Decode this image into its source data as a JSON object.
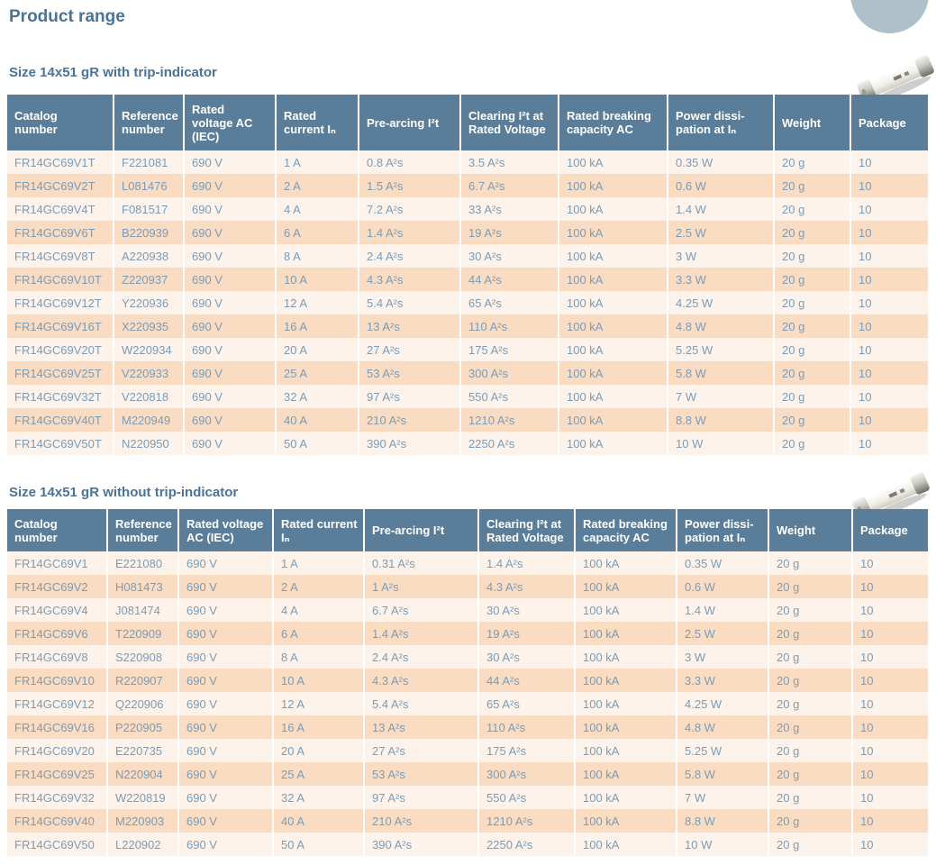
{
  "page": {
    "title": "Product range"
  },
  "colors": {
    "table_header_bg": "#5a7e9a",
    "row_light": "#fdf3eb",
    "row_peach": "#fadcc2",
    "cell_text": "#7a9cb8",
    "heading_text": "#4a7397",
    "circle_badge": "#aec0ca"
  },
  "tables": [
    {
      "heading": "Size 14x51 gR with trip-indicator",
      "columns": [
        "Catalog\nnumber",
        "Reference\nnumber",
        "Rated\nvoltage AC\n(IEC)",
        "Rated\ncurrent Iₙ",
        "Pre-arcing I²t",
        "Clearing I²t at\nRated Voltage",
        "Rated breaking\ncapacity AC",
        "Power dissi-\npation at Iₙ",
        "Weight",
        "Package"
      ],
      "rows": [
        [
          "FR14GC69V1T",
          "F221081",
          "690 V",
          "1 A",
          "0.8 A²s",
          "3.5 A²s",
          "100 kA",
          "0.35 W",
          "20 g",
          "10"
        ],
        [
          "FR14GC69V2T",
          "L081476",
          "690 V",
          "2 A",
          "1.5 A²s",
          "6.7 A²s",
          "100 kA",
          "0.6 W",
          "20 g",
          "10"
        ],
        [
          "FR14GC69V4T",
          "F081517",
          "690 V",
          "4 A",
          "7.2 A²s",
          "33 A²s",
          "100 kA",
          "1.4 W",
          "20 g",
          "10"
        ],
        [
          "FR14GC69V6T",
          "B220939",
          "690 V",
          "6 A",
          "1.4 A²s",
          "19 A²s",
          "100 kA",
          "2.5 W",
          "20 g",
          "10"
        ],
        [
          "FR14GC69V8T",
          "A220938",
          "690 V",
          "8 A",
          "2.4 A²s",
          "30 A²s",
          "100 kA",
          "3 W",
          "20 g",
          "10"
        ],
        [
          "FR14GC69V10T",
          "Z220937",
          "690 V",
          "10 A",
          "4.3 A²s",
          "44 A²s",
          "100 kA",
          "3.3 W",
          "20 g",
          "10"
        ],
        [
          "FR14GC69V12T",
          "Y220936",
          "690 V",
          "12 A",
          "5.4 A²s",
          "65 A²s",
          "100 kA",
          "4.25 W",
          "20 g",
          "10"
        ],
        [
          "FR14GC69V16T",
          "X220935",
          "690 V",
          "16 A",
          "13 A²s",
          "110 A²s",
          "100 kA",
          "4.8 W",
          "20 g",
          "10"
        ],
        [
          "FR14GC69V20T",
          "W220934",
          "690 V",
          "20 A",
          "27 A²s",
          "175 A²s",
          "100 kA",
          "5.25 W",
          "20 g",
          "10"
        ],
        [
          "FR14GC69V25T",
          "V220933",
          "690 V",
          "25 A",
          "53 A²s",
          "300 A²s",
          "100 kA",
          "5.8 W",
          "20 g",
          "10"
        ],
        [
          "FR14GC69V32T",
          "V220818",
          "690 V",
          "32 A",
          "97 A²s",
          "550 A²s",
          "100 kA",
          "7 W",
          "20 g",
          "10"
        ],
        [
          "FR14GC69V40T",
          "M220949",
          "690 V",
          "40 A",
          "210 A²s",
          "1210 A²s",
          "100 kA",
          "8.8 W",
          "20 g",
          "10"
        ],
        [
          "FR14GC69V50T",
          "N220950",
          "690 V",
          "50 A",
          "390 A²s",
          "2250 A²s",
          "100 kA",
          "10 W",
          "20 g",
          "10"
        ]
      ]
    },
    {
      "heading": "Size 14x51 gR without trip-indicator",
      "columns": [
        "Catalog\nnumber",
        "Reference\nnumber",
        "Rated voltage\nAC (IEC)",
        "Rated current\nIₙ",
        "Pre-arcing I²t",
        "Clearing I²t at\nRated Voltage",
        "Rated breaking\ncapacity AC",
        "Power dissi-\npation at Iₙ",
        "Weight",
        "Package"
      ],
      "rows": [
        [
          "FR14GC69V1",
          "E221080",
          "690 V",
          "1 A",
          "0.31 A²s",
          "1.4 A²s",
          "100 kA",
          "0.35 W",
          "20 g",
          "10"
        ],
        [
          "FR14GC69V2",
          "H081473",
          "690 V",
          "2 A",
          "1 A²s",
          "4.3 A²s",
          "100 kA",
          "0.6 W",
          "20 g",
          "10"
        ],
        [
          "FR14GC69V4",
          "J081474",
          "690 V",
          "4 A",
          "6.7 A²s",
          "30 A²s",
          "100 kA",
          "1.4 W",
          "20 g",
          "10"
        ],
        [
          "FR14GC69V6",
          "T220909",
          "690 V",
          "6 A",
          "1.4 A²s",
          "19 A²s",
          "100 kA",
          "2.5 W",
          "20 g",
          "10"
        ],
        [
          "FR14GC69V8",
          "S220908",
          "690 V",
          "8 A",
          "2.4 A²s",
          "30 A²s",
          "100 kA",
          "3 W",
          "20 g",
          "10"
        ],
        [
          "FR14GC69V10",
          "R220907",
          "690 V",
          "10 A",
          "4.3 A²s",
          "44 A²s",
          "100 kA",
          "3.3 W",
          "20 g",
          "10"
        ],
        [
          "FR14GC69V12",
          "Q220906",
          "690 V",
          "12 A",
          "5.4 A²s",
          "65 A²s",
          "100 kA",
          "4.25 W",
          "20 g",
          "10"
        ],
        [
          "FR14GC69V16",
          "P220905",
          "690 V",
          "16 A",
          "13 A²s",
          "110 A²s",
          "100 kA",
          "4.8 W",
          "20 g",
          "10"
        ],
        [
          "FR14GC69V20",
          "E220735",
          "690 V",
          "20 A",
          "27 A²s",
          "175 A²s",
          "100 kA",
          "5.25 W",
          "20 g",
          "10"
        ],
        [
          "FR14GC69V25",
          "N220904",
          "690 V",
          "25 A",
          "53 A²s",
          "300 A²s",
          "100 kA",
          "5.8 W",
          "20 g",
          "10"
        ],
        [
          "FR14GC69V32",
          "W220819",
          "690 V",
          "32 A",
          "97 A²s",
          "550 A²s",
          "100 kA",
          "7 W",
          "20 g",
          "10"
        ],
        [
          "FR14GC69V40",
          "M220903",
          "690 V",
          "40 A",
          "210 A²s",
          "1210 A²s",
          "100 kA",
          "8.8 W",
          "20 g",
          "10"
        ],
        [
          "FR14GC69V50",
          "L220902",
          "690 V",
          "50 A",
          "390 A²s",
          "2250 A²s",
          "100 kA",
          "10 W",
          "20 g",
          "10"
        ]
      ]
    }
  ]
}
